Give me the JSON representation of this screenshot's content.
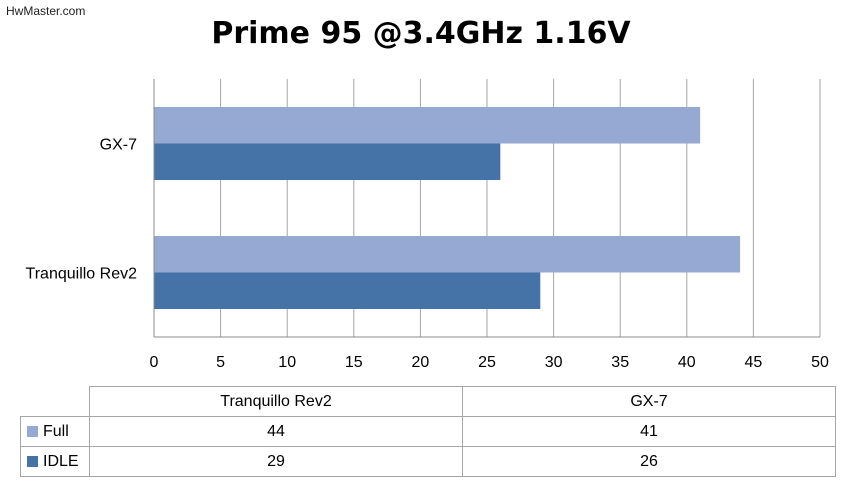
{
  "watermark": "HwMaster.com",
  "colors": {
    "full": "#95A9D2",
    "idle": "#4572A7",
    "grid": "#A6A6A6"
  },
  "chart_data": {
    "type": "bar",
    "orientation": "horizontal",
    "title": "Prime 95 @3.4GHz 1.16V",
    "categories": [
      "Tranquillo Rev2",
      "GX-7"
    ],
    "series": [
      {
        "name": "Full",
        "values": [
          44,
          41
        ]
      },
      {
        "name": "IDLE",
        "values": [
          29,
          26
        ]
      }
    ],
    "xlim": [
      0,
      50
    ],
    "xticks": [
      "0",
      "5",
      "10",
      "15",
      "20",
      "25",
      "30",
      "35",
      "40",
      "45",
      "50"
    ],
    "grid": true,
    "legend": "data-table-below"
  },
  "table": {
    "columns": [
      "Tranquillo Rev2",
      "GX-7"
    ],
    "rows": [
      {
        "label": "Full",
        "values": [
          "44",
          "41"
        ]
      },
      {
        "label": "IDLE",
        "values": [
          "29",
          "26"
        ]
      }
    ]
  }
}
